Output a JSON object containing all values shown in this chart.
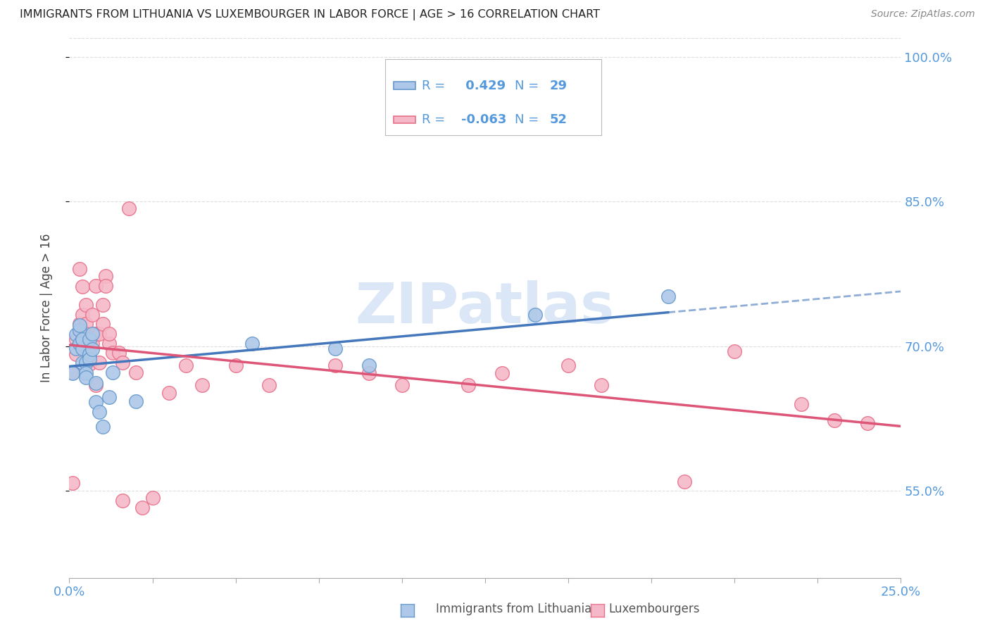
{
  "title": "IMMIGRANTS FROM LITHUANIA VS LUXEMBOURGER IN LABOR FORCE | AGE > 16 CORRELATION CHART",
  "source": "Source: ZipAtlas.com",
  "ylabel": "In Labor Force | Age > 16",
  "xlim": [
    0.0,
    0.25
  ],
  "ylim": [
    0.46,
    1.02
  ],
  "yticks": [
    0.55,
    0.7,
    0.85,
    1.0
  ],
  "ytick_labels": [
    "55.0%",
    "70.0%",
    "85.0%",
    "100.0%"
  ],
  "xticks": [
    0.0,
    0.025,
    0.05,
    0.075,
    0.1,
    0.125,
    0.15,
    0.175,
    0.2,
    0.225,
    0.25
  ],
  "xtick_labels_show": [
    "0.0%",
    "",
    "",
    "",
    "",
    "",
    "",
    "",
    "",
    "",
    "25.0%"
  ],
  "blue_R": 0.429,
  "blue_N": 29,
  "pink_R": -0.063,
  "pink_N": 52,
  "blue_fill_color": "#adc8e8",
  "pink_fill_color": "#f5b8c8",
  "blue_edge_color": "#6699cc",
  "pink_edge_color": "#e8708a",
  "blue_line_color": "#4477bb",
  "pink_line_color": "#dd5577",
  "grid_color": "#dddddd",
  "watermark_color": "#ccddf5",
  "title_color": "#222222",
  "axis_label_color": "#5599dd",
  "blue_points_x": [
    0.001,
    0.002,
    0.002,
    0.003,
    0.003,
    0.003,
    0.004,
    0.004,
    0.004,
    0.005,
    0.005,
    0.005,
    0.006,
    0.006,
    0.006,
    0.007,
    0.007,
    0.008,
    0.008,
    0.009,
    0.01,
    0.012,
    0.013,
    0.02,
    0.055,
    0.08,
    0.09,
    0.14,
    0.18
  ],
  "blue_points_y": [
    0.672,
    0.698,
    0.712,
    0.703,
    0.717,
    0.722,
    0.698,
    0.707,
    0.683,
    0.683,
    0.672,
    0.668,
    0.707,
    0.692,
    0.687,
    0.697,
    0.713,
    0.662,
    0.642,
    0.632,
    0.617,
    0.647,
    0.673,
    0.643,
    0.703,
    0.698,
    0.68,
    0.733,
    0.752
  ],
  "pink_points_x": [
    0.001,
    0.001,
    0.002,
    0.002,
    0.003,
    0.003,
    0.004,
    0.004,
    0.005,
    0.005,
    0.005,
    0.006,
    0.006,
    0.007,
    0.007,
    0.008,
    0.008,
    0.009,
    0.009,
    0.01,
    0.01,
    0.011,
    0.011,
    0.012,
    0.012,
    0.013,
    0.015,
    0.016,
    0.018,
    0.02,
    0.022,
    0.025,
    0.03,
    0.035,
    0.04,
    0.05,
    0.06,
    0.08,
    0.09,
    0.1,
    0.12,
    0.13,
    0.15,
    0.16,
    0.185,
    0.2,
    0.22,
    0.23,
    0.24,
    0.003,
    0.008,
    0.016
  ],
  "pink_points_y": [
    0.673,
    0.558,
    0.707,
    0.692,
    0.723,
    0.717,
    0.733,
    0.762,
    0.723,
    0.713,
    0.743,
    0.703,
    0.682,
    0.733,
    0.703,
    0.763,
    0.713,
    0.683,
    0.713,
    0.743,
    0.723,
    0.773,
    0.763,
    0.703,
    0.713,
    0.693,
    0.693,
    0.683,
    0.843,
    0.673,
    0.533,
    0.543,
    0.652,
    0.68,
    0.66,
    0.68,
    0.66,
    0.68,
    0.672,
    0.66,
    0.66,
    0.672,
    0.68,
    0.66,
    0.56,
    0.695,
    0.64,
    0.623,
    0.62,
    0.78,
    0.66,
    0.54
  ]
}
